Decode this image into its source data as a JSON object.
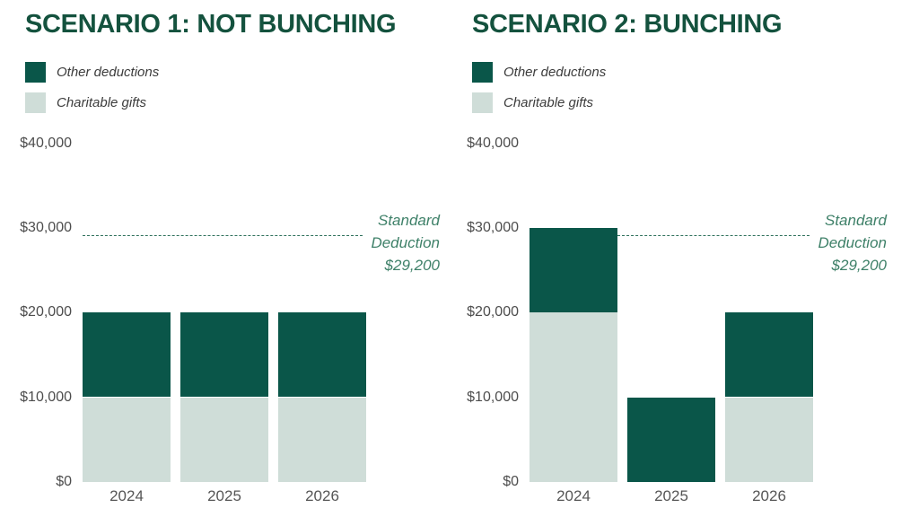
{
  "styles": {
    "background": "#ffffff",
    "title_color": "#14523e",
    "dark_green": "#0a5649",
    "light_green": "#cfddd8",
    "legend_text_color": "#3c3c3c",
    "axis_text_color": "#4d4d4d",
    "year_text_color": "#565656",
    "reference_text_color": "#3f8169",
    "reference_line_color": "#2f715c"
  },
  "chart_data": [
    {
      "type": "bar",
      "stacked": true,
      "title": "SCENARIO 1: NOT BUNCHING",
      "categories": [
        "2024",
        "2025",
        "2026"
      ],
      "series": [
        {
          "name": "Charitable gifts",
          "color": "#cfddd8",
          "values": [
            10000,
            10000,
            10000
          ]
        },
        {
          "name": "Other deductions",
          "color": "#0a5649",
          "values": [
            10000,
            10000,
            10000
          ]
        }
      ],
      "totals": [
        20000,
        20000,
        20000
      ],
      "xlabel": "",
      "ylabel": "",
      "ylim": [
        0,
        40000
      ],
      "ytick_interval": 10000,
      "ytick_labels": [
        "$0",
        "$10,000",
        "$20,000",
        "$30,000",
        "$40,000"
      ],
      "grid": false,
      "legend_position": "top-left",
      "reference_line": {
        "value": 29200,
        "style": "dashed",
        "label_lines": [
          "Standard",
          "Deduction",
          "$29,200"
        ]
      }
    },
    {
      "type": "bar",
      "stacked": true,
      "title": "SCENARIO 2: BUNCHING",
      "categories": [
        "2024",
        "2025",
        "2026"
      ],
      "series": [
        {
          "name": "Charitable gifts",
          "color": "#cfddd8",
          "values": [
            20000,
            0,
            10000
          ]
        },
        {
          "name": "Other deductions",
          "color": "#0a5649",
          "values": [
            10000,
            10000,
            10000
          ]
        }
      ],
      "totals": [
        30000,
        10000,
        20000
      ],
      "xlabel": "",
      "ylabel": "",
      "ylim": [
        0,
        40000
      ],
      "ytick_interval": 10000,
      "ytick_labels": [
        "$0",
        "$10,000",
        "$20,000",
        "$30,000",
        "$40,000"
      ],
      "grid": false,
      "legend_position": "top-left",
      "reference_line": {
        "value": 29200,
        "style": "dashed",
        "label_lines": [
          "Standard",
          "Deduction",
          "$29,200"
        ]
      }
    }
  ]
}
